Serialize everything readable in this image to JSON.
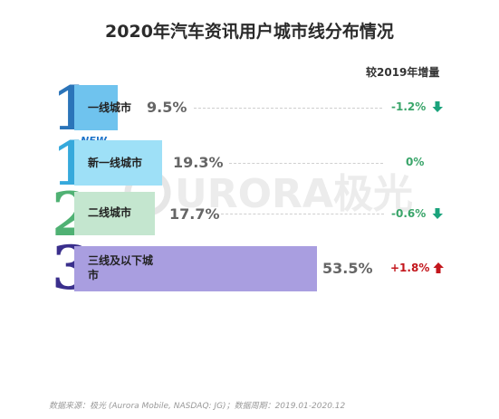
{
  "title": "2020年汽车资讯用户城市线分布情况",
  "column_header": "较2019年增量",
  "watermark": "URORA极光",
  "new_badge": "NEW",
  "footer": "数据来源：极光 (Aurora Mobile, NASDAQ: JG)；数据周期：2019.01-2020.12",
  "colors": {
    "tier1_bar": "#6fc3ee",
    "tier1_num": "#2b74b9",
    "newtier1_bar": "#9ee0f7",
    "newtier1_num": "#36a9dc",
    "tier2_bar": "#c4e6cf",
    "tier2_num": "#4fb173",
    "tier3_bar": "#a99ee0",
    "tier3_num": "#3a2f8c",
    "positive": "#c3161c",
    "negative": "#3aa56a"
  },
  "chart_data": {
    "type": "bar",
    "orientation": "horizontal",
    "title": "2020年汽车资讯用户城市线分布情况",
    "categories": [
      "一线城市",
      "新一线城市",
      "二线城市",
      "三线及以下城市"
    ],
    "rank_numbers": [
      "1",
      "1",
      "2",
      "3"
    ],
    "values": [
      9.5,
      19.3,
      17.7,
      53.5
    ],
    "value_labels": [
      "9.5%",
      "19.3%",
      "17.7%",
      "53.5%"
    ],
    "change_header": "较2019年增量",
    "changes": [
      -1.2,
      0,
      -0.6,
      1.8
    ],
    "change_labels": [
      "-1.2%",
      "0%",
      "-0.6%",
      "+1.8%"
    ],
    "change_directions": [
      "down",
      "none",
      "down",
      "up"
    ],
    "unit": "%"
  }
}
